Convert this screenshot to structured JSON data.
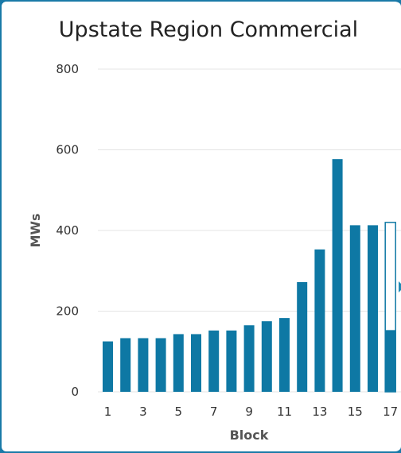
{
  "chart_data": {
    "type": "bar",
    "title": "Upstate Region Commercial",
    "xlabel": "Block",
    "ylabel": "MWs",
    "categories": [
      "1",
      "2",
      "3",
      "4",
      "5",
      "6",
      "7",
      "8",
      "9",
      "10",
      "11",
      "12",
      "13",
      "14",
      "15",
      "16",
      "17"
    ],
    "x_tick_labels": [
      "1",
      "3",
      "5",
      "7",
      "9",
      "11",
      "13",
      "15",
      "17"
    ],
    "y_ticks": [
      0,
      200,
      400,
      600,
      800
    ],
    "ylim": [
      0,
      800
    ],
    "grid": true,
    "series": [
      {
        "values": [
          125,
          133,
          133,
          133,
          143,
          143,
          152,
          152,
          165,
          175,
          183,
          272,
          353,
          577,
          413,
          413,
          153
        ]
      }
    ],
    "highlighted_block": {
      "category": "17",
      "outline_value": 420
    },
    "colors": {
      "bar": "#0e78a4",
      "grid": "#e4e4e4",
      "frame": "#1a7aa8",
      "highlight_outline": "#0e78a4"
    }
  }
}
